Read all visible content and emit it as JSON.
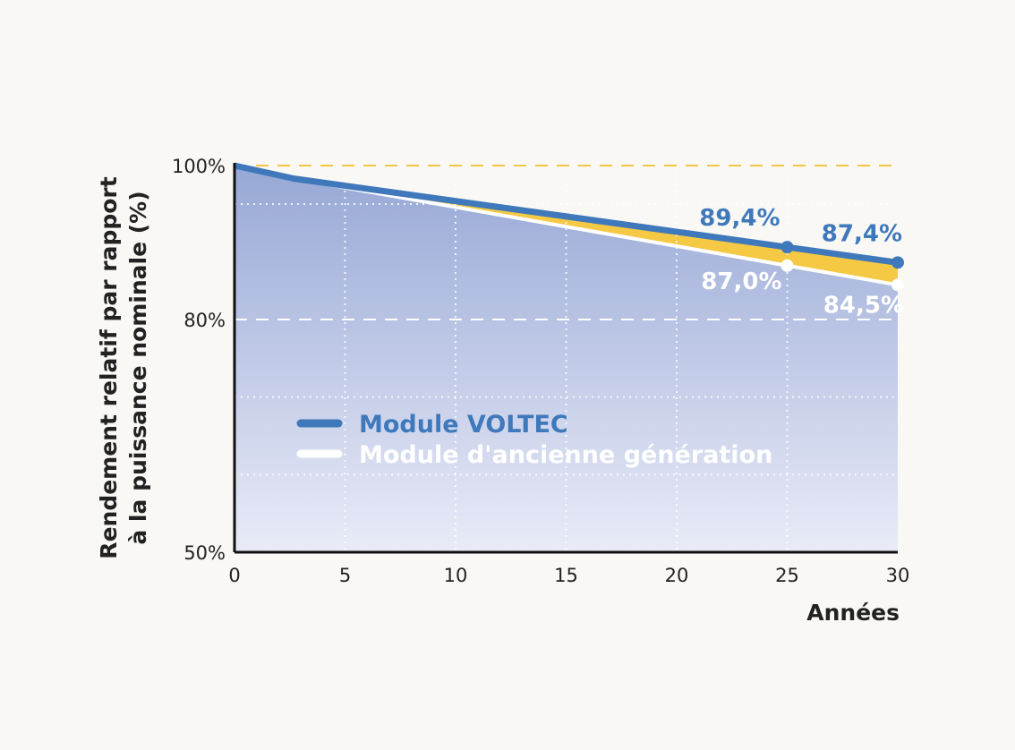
{
  "chart_data": {
    "type": "area",
    "title": "",
    "ylabel": "Rendement relatif par rapport à la puissance nominale (%)",
    "ylabel_lines": [
      "Rendement relatif par rapport",
      "à la puissance nominale (%)"
    ],
    "xlabel": "Années",
    "x_ticks": [
      0,
      5,
      10,
      15,
      20,
      25,
      30
    ],
    "y_ticks": [
      {
        "value": 100,
        "label": "100%"
      },
      {
        "value": 80,
        "label": "80%"
      },
      {
        "value": 50,
        "label": "50%"
      }
    ],
    "xlim": [
      0,
      30
    ],
    "ylim": [
      50,
      100
    ],
    "series": [
      {
        "name": "Module VOLTEC",
        "color": "#3f79bb",
        "points": [
          [
            0,
            100
          ],
          [
            2.7,
            98.3
          ],
          [
            25,
            89.4
          ],
          [
            30,
            87.4
          ]
        ]
      },
      {
        "name": "Module d'ancienne génération",
        "color": "#ffffff",
        "points": [
          [
            0,
            100
          ],
          [
            2.7,
            98.3
          ],
          [
            25,
            87.0
          ],
          [
            30,
            84.5
          ]
        ]
      }
    ],
    "annotations": [
      {
        "series": 0,
        "x": 25,
        "y": 89.4,
        "label": "89,4%"
      },
      {
        "series": 0,
        "x": 30,
        "y": 87.4,
        "label": "87,4%"
      },
      {
        "series": 1,
        "x": 25,
        "y": 87.0,
        "label": "87,0%"
      },
      {
        "series": 1,
        "x": 30,
        "y": 84.5,
        "label": "84,5%"
      }
    ],
    "reference_lines": [
      {
        "value": 100,
        "style": "dashed",
        "color": "#f2c744"
      },
      {
        "value": 80,
        "style": "dashed",
        "color": "#ffffff"
      }
    ],
    "grid": true,
    "gap_fill_color": "#f5c944",
    "area_fill_top": "#97a8d6",
    "area_fill_bottom": "#e9ebf7",
    "legend": {
      "position": "center-left",
      "entries": [
        "Module VOLTEC",
        "Module d'ancienne génération"
      ]
    }
  }
}
